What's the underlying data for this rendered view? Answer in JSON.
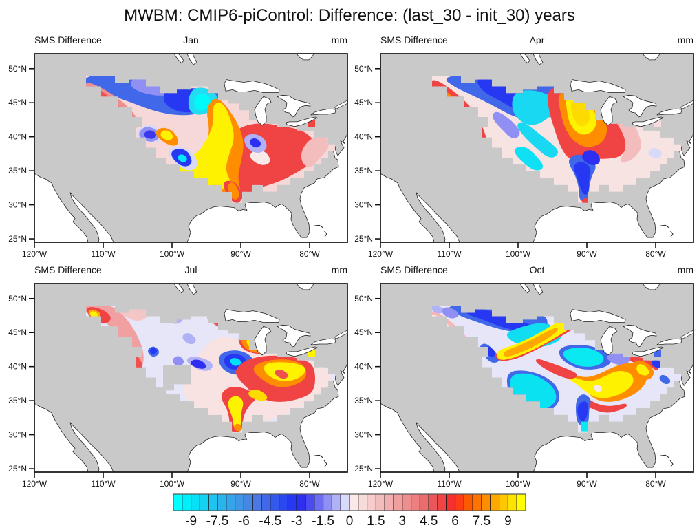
{
  "title": "MWBM: CMIP6-piControl: Difference: (last_30 - init_30) years",
  "panels": [
    {
      "left_label": "SMS Difference",
      "month": "Jan",
      "units": "mm"
    },
    {
      "left_label": "SMS Difference",
      "month": "Apr",
      "units": "mm"
    },
    {
      "left_label": "SMS Difference",
      "month": "Jul",
      "units": "mm"
    },
    {
      "left_label": "SMS Difference",
      "month": "Oct",
      "units": "mm"
    }
  ],
  "axes": {
    "x_ticks": [
      "120°W",
      "110°W",
      "100°W",
      "90°W",
      "80°W"
    ],
    "y_ticks": [
      "50°N",
      "45°N",
      "40°N",
      "35°N",
      "30°N",
      "25°N"
    ]
  },
  "colorbar": {
    "labels": [
      "-9",
      "-7.5",
      "-6",
      "-4.5",
      "-3",
      "-1.5",
      "0",
      "1.5",
      "3",
      "4.5",
      "6",
      "7.5",
      "9"
    ],
    "min": -10,
    "max": 10,
    "step": 0.5,
    "label_start_cell": 2,
    "label_cell_step": 3,
    "colors": [
      "#00FFFF",
      "#00F0FB",
      "#06E1F7",
      "#13D2F3",
      "#1FC3F0",
      "#2AB4EC",
      "#35A5E9",
      "#3F96E6",
      "#4787E4",
      "#4B78E4",
      "#4168E8",
      "#3558EC",
      "#2C48F0",
      "#2738F2",
      "#2F2FF1",
      "#4B4BF0",
      "#6D6DF2",
      "#8F8FF4",
      "#B1B1F6",
      "#D9D9FA",
      "#FAE9E9",
      "#F8DBDB",
      "#F6CCCC",
      "#F4BDBD",
      "#F2AEAE",
      "#F09F9F",
      "#EE8F8F",
      "#EC7F7F",
      "#EA6D6D",
      "#E95858",
      "#F04343",
      "#F52E2E",
      "#FA3D15",
      "#FD5A00",
      "#FE7400",
      "#FE8E00",
      "#FEA800",
      "#FDC800",
      "#FEE300",
      "#FFFF00"
    ]
  },
  "map_colors": {
    "land": "#C9C9C9",
    "water": "#FFFFFF",
    "coast": "#222222",
    "frame": "#111111"
  },
  "chart_data": {
    "type": "heatmap",
    "subtype": "filled-contour-maps",
    "title": "MWBM: CMIP6-piControl: Difference: (last_30 - init_30) years",
    "variable": "SMS Difference",
    "units": "mm",
    "panels": [
      "Jan",
      "Apr",
      "Jul",
      "Oct"
    ],
    "region": "Central/Eastern North America (CONUS and southern Canada)",
    "map_extent": {
      "lon": [
        -120,
        -74.5
      ],
      "lat": [
        24.5,
        52.2
      ]
    },
    "x_tick_values": [
      -120,
      -110,
      -100,
      -90,
      -80
    ],
    "y_tick_values": [
      50,
      45,
      40,
      35,
      30,
      25
    ],
    "contour_levels": {
      "min": -10,
      "max": 10,
      "step": 0.5
    },
    "colorbar_tick_values": [
      -9,
      -7.5,
      -6,
      -4.5,
      -3,
      -1.5,
      0,
      1.5,
      3,
      4.5,
      6,
      7.5,
      9
    ],
    "legend_position": "bottom-center",
    "features": {
      "Jan": [
        "Strong negative band (blue/cyan, -4 to -10 mm) across the northern plains from Montana to Minnesota",
        "Strong positive SW-NE band (yellow, +8 to +10 mm) from Oklahoma/Kansas through the upper Midwest",
        "Broad positive region (red/orange, +3 to +7 mm) over the Ohio and Tennessee valleys and the Southeast",
        "Negative pockets (deep blue with cyan core) over the southern plains and mid-South",
        "Pink/red fringe along the northwestern edge of the data region"
      ],
      "Apr": [
        "Negative band (blue, -3 to -7 mm) across the far northern plains",
        "Large cyan region (-7 to -10 mm) over the central/northern plains",
        "Red/orange arc (+4 to +7 mm) along the western edge of the data region",
        "Strong positive core (yellow, +8 to +10 mm) over the upper Midwest ringed by orange and red",
        "Negative tongue (blue, -4 to -8 mm) down the lower Mississippi valley; pale pink east of the Appalachians"
      ],
      "Jul": [
        "Weak anomalies (pale lavender/pink, within ±1.5 mm) across most of the northern and central plains",
        "Positive spots (red with yellow-orange cores) along the west edge of the domain",
        "Strong positive area (yellow, +8 to +10 mm) over the Ohio valley, near Lake Michigan and down to the Gulf coast",
        "Negative pockets (royal blue with cyan core, -5 to -9 mm) in the mid-Mississippi valley",
        "Gray masked (missing data) box over the central high plains"
      ],
      "Oct": [
        "Alternating SW-NE bands of strong negative (cyan/blue, -7 to -10 mm) and strong positive (yellow/orange, +7 to +10 mm) anomalies across the Midwest",
        "Negative band (blue) across the northern plains with a pale pink western fringe",
        "Large cyan pockets over the central plains and Corn Belt",
        "Positive yellow/orange belt through the Ohio and Tennessee valleys",
        "Cyan (negative) pocket at the Gulf coast and a blue cell near Lake Erie"
      ]
    }
  }
}
